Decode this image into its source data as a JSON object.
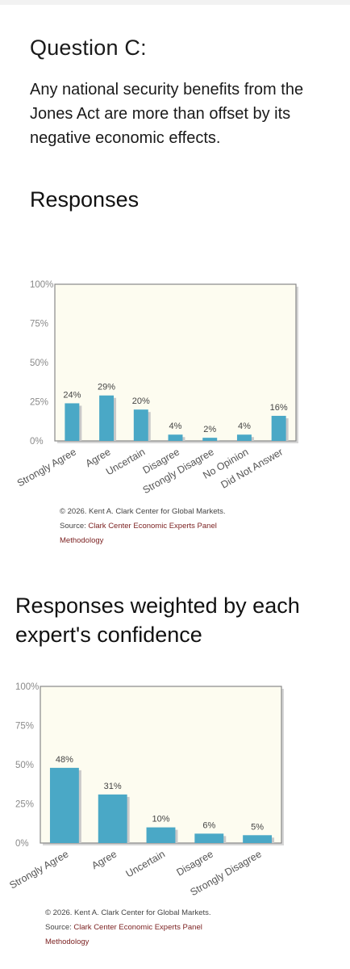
{
  "question": {
    "title": "Question C:",
    "text": "Any national security benefits from the Jones Act are more than offset by its negative economic effects."
  },
  "section1": {
    "title": "Responses"
  },
  "section2": {
    "title": "Responses weighted by each expert's confidence"
  },
  "footer": {
    "copyright": "© 2026. Kent A. Clark Center for Global Markets.",
    "source_prefix": "Source: ",
    "source_link": "Clark Center Economic Experts Panel",
    "methodology": "Methodology"
  },
  "colors": {
    "bar": "#4aa8c6",
    "plot_bg": "#fdfcf0",
    "frame": "#888888",
    "link": "#7a1f1f"
  },
  "chart_data": [
    {
      "type": "bar",
      "categories": [
        "Strongly Agree",
        "Agree",
        "Uncertain",
        "Disagree",
        "Strongly Disagree",
        "No Opinion",
        "Did Not Answer"
      ],
      "values": [
        24,
        29,
        20,
        4,
        2,
        4,
        16
      ],
      "value_labels": [
        "24%",
        "29%",
        "20%",
        "4%",
        "2%",
        "4%",
        "16%"
      ],
      "yticks": [
        "0%",
        "25%",
        "50%",
        "75%",
        "100%"
      ],
      "ylim": [
        0,
        100
      ]
    },
    {
      "type": "bar",
      "categories": [
        "Strongly Agree",
        "Agree",
        "Uncertain",
        "Disagree",
        "Strongly Disagree"
      ],
      "values": [
        48,
        31,
        10,
        6,
        5
      ],
      "value_labels": [
        "48%",
        "31%",
        "10%",
        "6%",
        "5%"
      ],
      "yticks": [
        "0%",
        "25%",
        "50%",
        "75%",
        "100%"
      ],
      "ylim": [
        0,
        100
      ]
    }
  ]
}
